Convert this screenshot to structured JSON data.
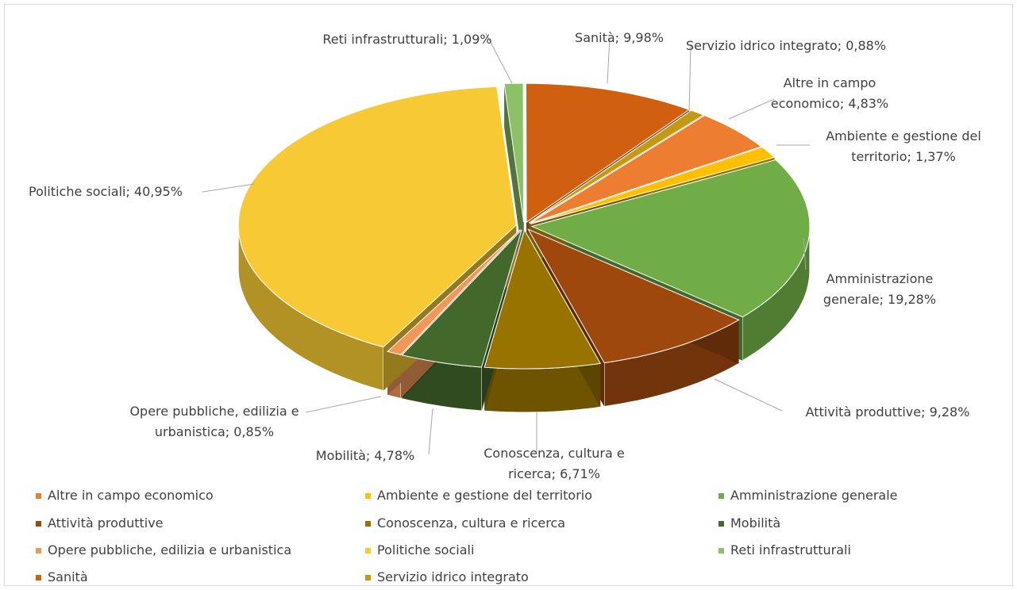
{
  "chart_data": {
    "type": "pie3d",
    "categories": [
      "Altre in campo economico",
      "Ambiente e gestione del territorio",
      "Amministrazione generale",
      "Attività produttive",
      "Conoscenza, cultura e ricerca",
      "Mobilità",
      "Opere pubbliche, edilizia e urbanistica",
      "Politiche sociali",
      "Reti infrastrutturali",
      "Sanità",
      "Servizio idrico integrato"
    ],
    "values": [
      4.83,
      1.37,
      19.28,
      9.28,
      6.71,
      4.78,
      0.85,
      40.95,
      1.09,
      9.98,
      0.88
    ],
    "value_labels": [
      "Altre in campo economico; 4,83%",
      "Ambiente e gestione del territorio; 1,37%",
      "Amministrazione generale; 19,28%",
      "Attività produttive; 9,28%",
      "Conoscenza, cultura e ricerca; 6,71%",
      "Mobilità; 4,78%",
      "Opere pubbliche, edilizia e urbanistica; 0,85%",
      "Politiche sociali; 40,95%",
      "Reti infrastrutturali; 1,09%",
      "Sanità; 9,98%",
      "Servizio idrico integrato; 0,88%"
    ],
    "colors": [
      "#ed7d31",
      "#ffc000",
      "#70ad47",
      "#9e480e",
      "#997300",
      "#43682b",
      "#f1975a",
      "#f7c934",
      "#8cc168",
      "#d0600f",
      "#c49a14"
    ],
    "start_angle": 39,
    "legend": "bottom"
  }
}
